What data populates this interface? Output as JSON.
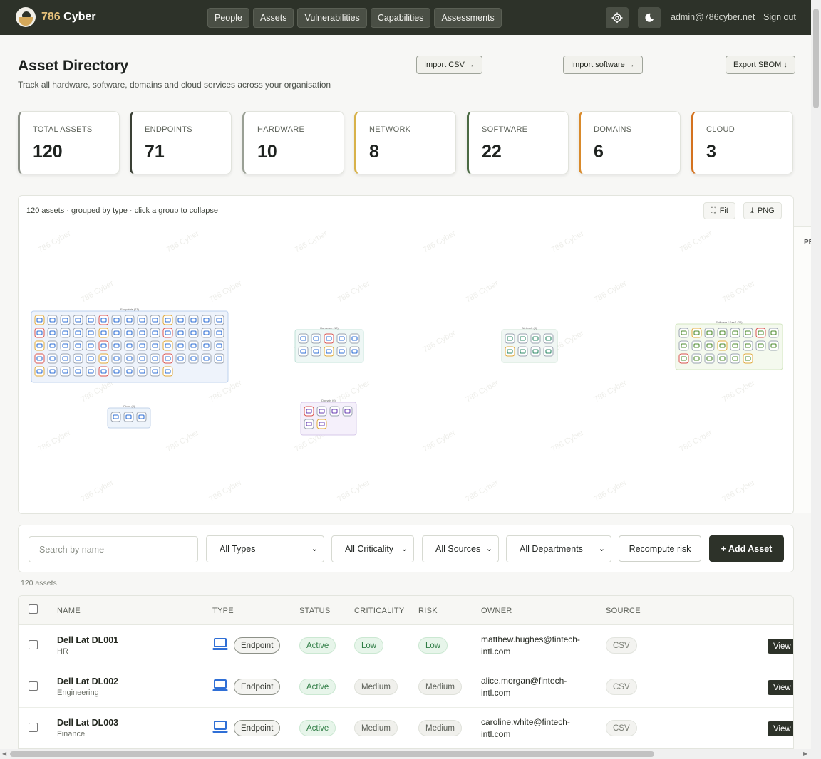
{
  "brand": {
    "name": "786 Cyber",
    "num": "786",
    "word": " Cyber"
  },
  "nav": [
    "People",
    "Assets",
    "Vulnerabilities",
    "Capabilities",
    "Assessments"
  ],
  "user": {
    "email": "admin@786cyber.net",
    "signout": "Sign out"
  },
  "header": {
    "title": "Asset Directory",
    "subtitle": "Track all hardware, software, domains and cloud services across your organisation",
    "import_csv": "Import CSV →",
    "import_software": "Import software →",
    "export_sbom": "Export SBOM ↓"
  },
  "stats": [
    {
      "label": "TOTAL ASSETS",
      "value": "120",
      "color": "#8a8f86"
    },
    {
      "label": "ENDPOINTS",
      "value": "71",
      "color": "#3a4035"
    },
    {
      "label": "HARDWARE",
      "value": "10",
      "color": "#9aa095"
    },
    {
      "label": "NETWORK",
      "value": "8",
      "color": "#d8b24a"
    },
    {
      "label": "SOFTWARE",
      "value": "22",
      "color": "#4b6a43"
    },
    {
      "label": "DOMAINS",
      "value": "6",
      "color": "#d98a2b"
    },
    {
      "label": "CLOUD",
      "value": "3",
      "color": "#d4721f"
    }
  ],
  "graph": {
    "caption": "120 assets · grouped by type · click a group to collapse",
    "fit": "Fit",
    "png": "PNG",
    "side_label": "PE",
    "groups": [
      {
        "label": "Endpoints (71)",
        "count": 71
      },
      {
        "label": "Hardware (10)",
        "count": 10
      },
      {
        "label": "Network (8)",
        "count": 8
      },
      {
        "label": "Software / SaaS (22)",
        "count": 22
      },
      {
        "label": "Cloud (3)",
        "count": 3
      },
      {
        "label": "Domain (6)",
        "count": 6
      }
    ]
  },
  "filters": {
    "search_placeholder": "Search by name",
    "types": "All Types",
    "criticality": "All Criticality",
    "sources": "All Sources",
    "departments": "All Departments",
    "recompute": "Recompute risk",
    "add": "+ Add Asset"
  },
  "asset_count": "120 assets",
  "table": {
    "columns": [
      "NAME",
      "TYPE",
      "STATUS",
      "CRITICALITY",
      "RISK",
      "OWNER",
      "SOURCE"
    ],
    "rows": [
      {
        "name": "Dell Lat DL001",
        "dept": "HR",
        "type": "Endpoint",
        "status": "Active",
        "criticality": "Low",
        "risk": "Low",
        "owner": "matthew.hughes@fintech-intl.com",
        "source": "CSV",
        "action": "View"
      },
      {
        "name": "Dell Lat DL002",
        "dept": "Engineering",
        "type": "Endpoint",
        "status": "Active",
        "criticality": "Medium",
        "risk": "Medium",
        "owner": "alice.morgan@fintech-intl.com",
        "source": "CSV",
        "action": "View"
      },
      {
        "name": "Dell Lat DL003",
        "dept": "Finance",
        "type": "Endpoint",
        "status": "Active",
        "criticality": "Medium",
        "risk": "Medium",
        "owner": "caroline.white@fintech-intl.com",
        "source": "CSV",
        "action": "View"
      }
    ]
  }
}
